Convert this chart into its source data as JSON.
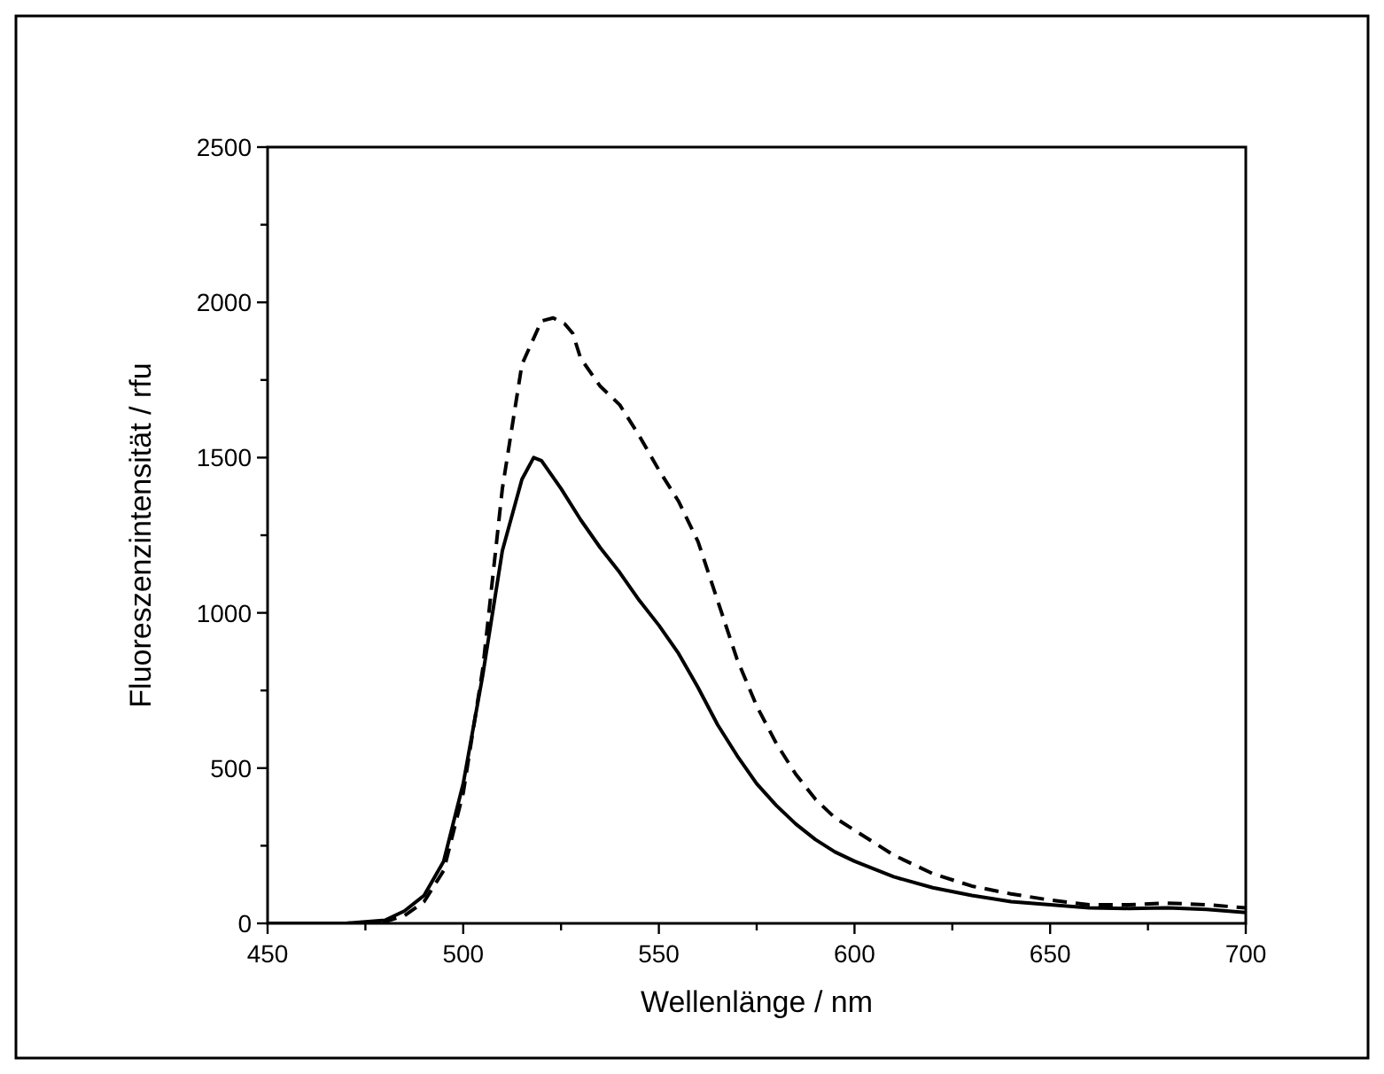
{
  "chart_data": {
    "type": "line",
    "xlabel": "Wellenlänge / nm",
    "ylabel": "Fluoreszenzintensität / rfu",
    "xlim": [
      450,
      700
    ],
    "ylim": [
      0,
      2500
    ],
    "xticks": [
      450,
      {
        "value": 475,
        "label": null
      },
      500,
      {
        "value": 525,
        "label": null
      },
      550,
      {
        "value": 575,
        "label": null
      },
      600,
      {
        "value": 625,
        "label": null
      },
      650,
      {
        "value": 675,
        "label": null
      },
      700
    ],
    "yticks": [
      0,
      {
        "value": 250,
        "label": null
      },
      500,
      {
        "value": 750,
        "label": null
      },
      1000,
      {
        "value": 1250,
        "label": null
      },
      1500,
      {
        "value": 1750,
        "label": null
      },
      2000,
      {
        "value": 2250,
        "label": null
      },
      2500
    ],
    "grid": false,
    "series": [
      {
        "color": "#000000",
        "line_style": "solid",
        "x": [
          450,
          470,
          480,
          485,
          490,
          495,
          500,
          505,
          510,
          515,
          518,
          520,
          525,
          530,
          535,
          540,
          545,
          550,
          555,
          560,
          565,
          570,
          575,
          580,
          585,
          590,
          595,
          600,
          610,
          620,
          630,
          640,
          650,
          660,
          670,
          680,
          690,
          700
        ],
        "values": [
          0,
          0,
          10,
          40,
          90,
          200,
          450,
          800,
          1200,
          1430,
          1500,
          1490,
          1400,
          1300,
          1210,
          1130,
          1040,
          960,
          870,
          760,
          640,
          540,
          450,
          380,
          320,
          270,
          230,
          200,
          150,
          115,
          90,
          70,
          60,
          50,
          48,
          50,
          45,
          35
        ]
      },
      {
        "color": "#000000",
        "line_style": "dashed",
        "x": [
          450,
          470,
          480,
          485,
          490,
          495,
          500,
          505,
          510,
          515,
          520,
          523,
          526,
          528,
          530,
          535,
          540,
          545,
          550,
          555,
          560,
          565,
          570,
          575,
          580,
          585,
          590,
          595,
          600,
          610,
          620,
          630,
          640,
          650,
          660,
          670,
          680,
          690,
          700
        ],
        "values": [
          0,
          0,
          5,
          25,
          70,
          170,
          420,
          820,
          1400,
          1800,
          1940,
          1950,
          1930,
          1900,
          1820,
          1730,
          1670,
          1570,
          1460,
          1360,
          1230,
          1040,
          850,
          700,
          580,
          480,
          400,
          340,
          300,
          220,
          160,
          120,
          95,
          75,
          60,
          60,
          65,
          60,
          50
        ]
      }
    ]
  }
}
